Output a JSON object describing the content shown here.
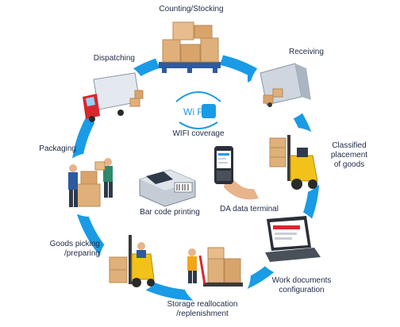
{
  "stages": [
    {
      "key": "top",
      "label": "Counting/Stocking",
      "icon": "boxes-on-pallet-icon"
    },
    {
      "key": "receiving",
      "label": "Receiving",
      "icon": "truck-unloading-icon"
    },
    {
      "key": "classified",
      "label": "Classified\nplacement\nof goods",
      "icon": "forklift-icon"
    },
    {
      "key": "work_docs",
      "label": "Work documents\nconfiguration",
      "icon": "laptop-icon"
    },
    {
      "key": "storage",
      "label": "Storage reallocation\n/replenishment",
      "icon": "pallet-jack-icon"
    },
    {
      "key": "picking",
      "label": "Goods picking\n/preparing",
      "icon": "forklift-picking-icon"
    },
    {
      "key": "packaging",
      "label": "Packaging",
      "icon": "workers-boxes-icon"
    },
    {
      "key": "dispatching",
      "label": "Dispatching",
      "icon": "truck-loading-icon"
    }
  ],
  "center": {
    "wifi_logo": "Wi Fi",
    "wifi_label": "WIFI coverage",
    "barcode_label": "Bar code printing",
    "terminal_label": "DA data terminal"
  },
  "colors": {
    "ring": "#1a9be6",
    "text": "#1f2a44",
    "box": "#e0b07a",
    "truck_red": "#d6282d",
    "forklift_yellow": "#f2c21b"
  }
}
